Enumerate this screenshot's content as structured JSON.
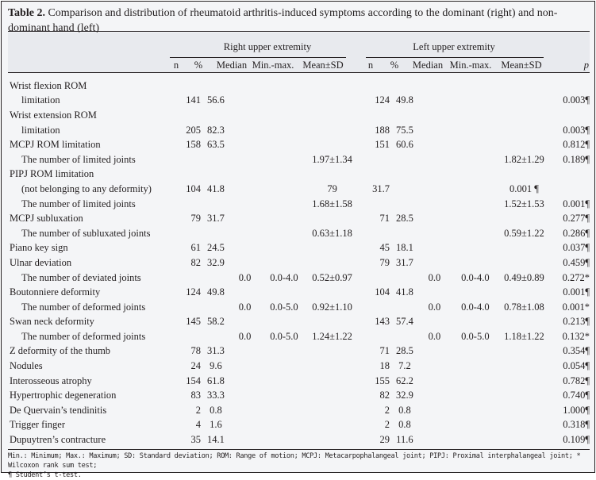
{
  "title": {
    "label": "Table 2.",
    "text": " Comparison and distribution of rheumatoid arthritis-induced symptoms according to the dominant (right) and non-dominant hand (left)"
  },
  "groups": {
    "right": "Right upper extremity",
    "left": "Left upper extremity"
  },
  "columns": [
    "n",
    "%",
    "Median",
    "Min.-max.",
    "Mean±SD",
    "n",
    "%",
    "Median",
    "Min.-max.",
    "Mean±SD",
    "p"
  ],
  "rows": [
    {
      "label": "Wrist flexion ROM",
      "indent": false,
      "cells": [
        "",
        "",
        "",
        "",
        "",
        "",
        "",
        "",
        "",
        "",
        ""
      ]
    },
    {
      "label": "limitation",
      "indent": true,
      "cells": [
        "141",
        "56.6",
        "",
        "",
        "",
        "124",
        "49.8",
        "",
        "",
        "",
        "0.003¶"
      ]
    },
    {
      "label": "Wrist extension ROM",
      "indent": false,
      "cells": [
        "",
        "",
        "",
        "",
        "",
        "",
        "",
        "",
        "",
        "",
        ""
      ]
    },
    {
      "label": "limitation",
      "indent": true,
      "cells": [
        "205",
        "82.3",
        "",
        "",
        "",
        "188",
        "75.5",
        "",
        "",
        "",
        "0.003¶"
      ]
    },
    {
      "label": "MCPJ ROM limitation",
      "indent": false,
      "cells": [
        "158",
        "63.5",
        "",
        "",
        "",
        "151",
        "60.6",
        "",
        "",
        "",
        "0.812¶"
      ]
    },
    {
      "label": "The number of limited joints",
      "indent": true,
      "cells": [
        "",
        "",
        "",
        "",
        "1.97±1.34",
        "",
        "",
        "",
        "",
        "1.82±1.29",
        "0.189¶"
      ]
    },
    {
      "label": "PIPJ ROM limitation",
      "indent": false,
      "cells": [
        "",
        "",
        "",
        "",
        "",
        "",
        "",
        "",
        "",
        "",
        ""
      ]
    },
    {
      "label": "(not belonging to any deformity)",
      "indent": true,
      "cells": [
        "104",
        "41.8",
        "",
        "",
        "79",
        "31.7",
        "",
        "",
        "",
        "0.001 ¶",
        ""
      ]
    },
    {
      "label": "The number of limited joints",
      "indent": true,
      "cells": [
        "",
        "",
        "",
        "",
        "1.68±1.58",
        "",
        "",
        "",
        "",
        "1.52±1.53",
        "0.001¶"
      ]
    },
    {
      "label": "MCPJ subluxation",
      "indent": false,
      "cells": [
        "79",
        "31.7",
        "",
        "",
        "",
        "71",
        "28.5",
        "",
        "",
        "",
        "0.277¶"
      ]
    },
    {
      "label": "The number of subluxated joints",
      "indent": true,
      "cells": [
        "",
        "",
        "",
        "",
        "0.63±1.18",
        "",
        "",
        "",
        "",
        "0.59±1.22",
        "0.286¶"
      ]
    },
    {
      "label": "Piano key sign",
      "indent": false,
      "cells": [
        "61",
        "24.5",
        "",
        "",
        "",
        "45",
        "18.1",
        "",
        "",
        "",
        "0.037¶"
      ]
    },
    {
      "label": "Ulnar deviation",
      "indent": false,
      "cells": [
        "82",
        "32.9",
        "",
        "",
        "",
        "79",
        "31.7",
        "",
        "",
        "",
        "0.459¶"
      ]
    },
    {
      "label": "The number of deviated joints",
      "indent": true,
      "cells": [
        "",
        "",
        "0.0",
        "0.0-4.0",
        "0.52±0.97",
        "",
        "",
        "0.0",
        "0.0-4.0",
        "0.49±0.89",
        "0.272*"
      ]
    },
    {
      "label": "Boutonniere deformity",
      "indent": false,
      "cells": [
        "124",
        "49.8",
        "",
        "",
        "",
        "104",
        "41.8",
        "",
        "",
        "",
        "0.001¶"
      ]
    },
    {
      "label": "The number of deformed joints",
      "indent": true,
      "cells": [
        "",
        "",
        "0.0",
        "0.0-5.0",
        "0.92±1.10",
        "",
        "",
        "0.0",
        "0.0-4.0",
        "0.78±1.08",
        "0.001*"
      ]
    },
    {
      "label": "Swan neck deformity",
      "indent": false,
      "cells": [
        "145",
        "58.2",
        "",
        "",
        "",
        "143",
        "57.4",
        "",
        "",
        "",
        "0.213¶"
      ]
    },
    {
      "label": "The number of deformed joints",
      "indent": true,
      "cells": [
        "",
        "",
        "0.0",
        "0.0-5.0",
        "1.24±1.22",
        "",
        "",
        "0.0",
        "0.0-5.0",
        "1.18±1.22",
        "0.132*"
      ]
    },
    {
      "label": "Z deformity of the thumb",
      "indent": false,
      "cells": [
        "78",
        "31.3",
        "",
        "",
        "",
        "71",
        "28.5",
        "",
        "",
        "",
        "0.354¶"
      ]
    },
    {
      "label": "Nodules",
      "indent": false,
      "cells": [
        "24",
        "9.6",
        "",
        "",
        "",
        "18",
        "7.2",
        "",
        "",
        "",
        "0.054¶"
      ]
    },
    {
      "label": "Interosseous atrophy",
      "indent": false,
      "cells": [
        "154",
        "61.8",
        "",
        "",
        "",
        "155",
        "62.2",
        "",
        "",
        "",
        "0.782¶"
      ]
    },
    {
      "label": "Hypertrophic degeneration",
      "indent": false,
      "cells": [
        "83",
        "33.3",
        "",
        "",
        "",
        "82",
        "32.9",
        "",
        "",
        "",
        "0.740¶"
      ]
    },
    {
      "label": "De Quervain’s tendinitis",
      "indent": false,
      "cells": [
        "2",
        "0.8",
        "",
        "",
        "",
        "2",
        "0.8",
        "",
        "",
        "",
        "1.000¶"
      ]
    },
    {
      "label": "Trigger finger",
      "indent": false,
      "cells": [
        "4",
        "1.6",
        "",
        "",
        "",
        "2",
        "0.8",
        "",
        "",
        "",
        "0.318¶"
      ]
    },
    {
      "label": "Dupuytren’s contracture",
      "indent": false,
      "cells": [
        "35",
        "14.1",
        "",
        "",
        "",
        "29",
        "11.6",
        "",
        "",
        "",
        "0.109¶"
      ]
    }
  ],
  "footnote": {
    "line1": "Min.: Minimum; Max.: Maximum; SD: Standard deviation; ROM: Range of motion; MCPJ: Metacarpophalangeal joint; PIPJ: Proximal interphalangeal joint; * Wilcoxon rank sum test;",
    "line2": "¶ Student’s t-test."
  }
}
